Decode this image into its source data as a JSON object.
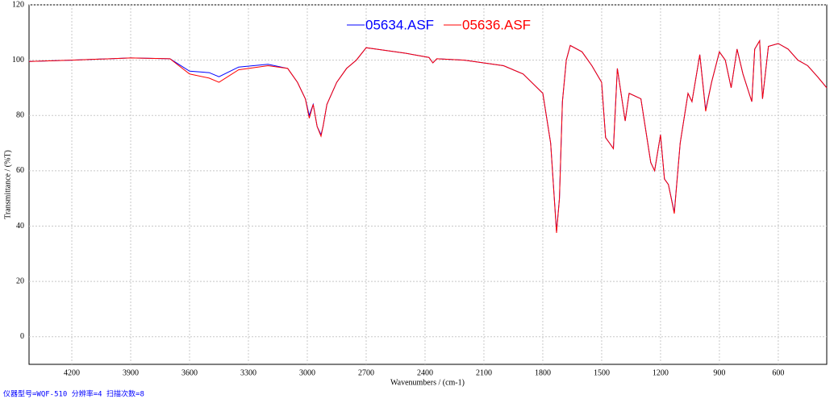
{
  "chart_data": {
    "type": "line",
    "x_label": "Wavenumbers / (cm-1)",
    "y_label": "Transmittance / (%T)",
    "footer": "仪器型号=WQF-510 分辨率=4 扫描次数=8",
    "xlim": [
      4418,
      353
    ],
    "ylim": [
      -10,
      120
    ],
    "xticks": [
      4200,
      3900,
      3600,
      3300,
      3000,
      2700,
      2400,
      2100,
      1800,
      1500,
      1200,
      900,
      600
    ],
    "yticks": [
      0,
      20,
      40,
      60,
      80,
      100,
      120
    ],
    "grid": true,
    "x": [
      4418,
      4200,
      3900,
      3700,
      3600,
      3500,
      3450,
      3350,
      3200,
      3100,
      3050,
      3010,
      2990,
      2970,
      2950,
      2930,
      2920,
      2900,
      2850,
      2800,
      2750,
      2700,
      2650,
      2500,
      2380,
      2360,
      2340,
      2200,
      2000,
      1900,
      1800,
      1760,
      1730,
      1715,
      1700,
      1680,
      1660,
      1600,
      1550,
      1500,
      1480,
      1460,
      1440,
      1420,
      1380,
      1360,
      1300,
      1250,
      1230,
      1200,
      1180,
      1160,
      1130,
      1100,
      1060,
      1040,
      1000,
      970,
      940,
      900,
      870,
      840,
      810,
      780,
      735,
      720,
      695,
      680,
      650,
      600,
      550,
      500,
      450,
      400,
      353
    ],
    "series": [
      {
        "name": "05634.ASF",
        "color": "#0000ff",
        "values": [
          99.5,
          100,
          100.8,
          100.5,
          96,
          95.5,
          94,
          97.5,
          98.5,
          97,
          92,
          86,
          80,
          84,
          76,
          73,
          76,
          84,
          92,
          97,
          100,
          104.5,
          104,
          102.5,
          101,
          99,
          100.5,
          100,
          98,
          95,
          88,
          70,
          38,
          50,
          85,
          100,
          105.3,
          103,
          98,
          92,
          72,
          70,
          68,
          97,
          78,
          88,
          86,
          63,
          60,
          73,
          57,
          55,
          45,
          70,
          88,
          85,
          102,
          82,
          92,
          103,
          100,
          90,
          104,
          95,
          85,
          104,
          107,
          86,
          105,
          106,
          104,
          100,
          98,
          94,
          90
        ]
      },
      {
        "name": "05636.ASF",
        "color": "#ff0000",
        "values": [
          99.5,
          100,
          100.8,
          100.5,
          95,
          93.5,
          92,
          96.5,
          98,
          97,
          92,
          86,
          79,
          84,
          76,
          72.5,
          76,
          84,
          92,
          97,
          100,
          104.5,
          104,
          102.5,
          101,
          99,
          100.5,
          100,
          98,
          95,
          88,
          70,
          37.5,
          50,
          85,
          100,
          105.3,
          103,
          98,
          92,
          72,
          70,
          68,
          97,
          78,
          88,
          86,
          63,
          60,
          73,
          57,
          55,
          44.5,
          70,
          88,
          85,
          102,
          81.5,
          92,
          103,
          100,
          90,
          104,
          95,
          85,
          104,
          107,
          86,
          105,
          106,
          104,
          100,
          98,
          94,
          90
        ]
      }
    ]
  }
}
